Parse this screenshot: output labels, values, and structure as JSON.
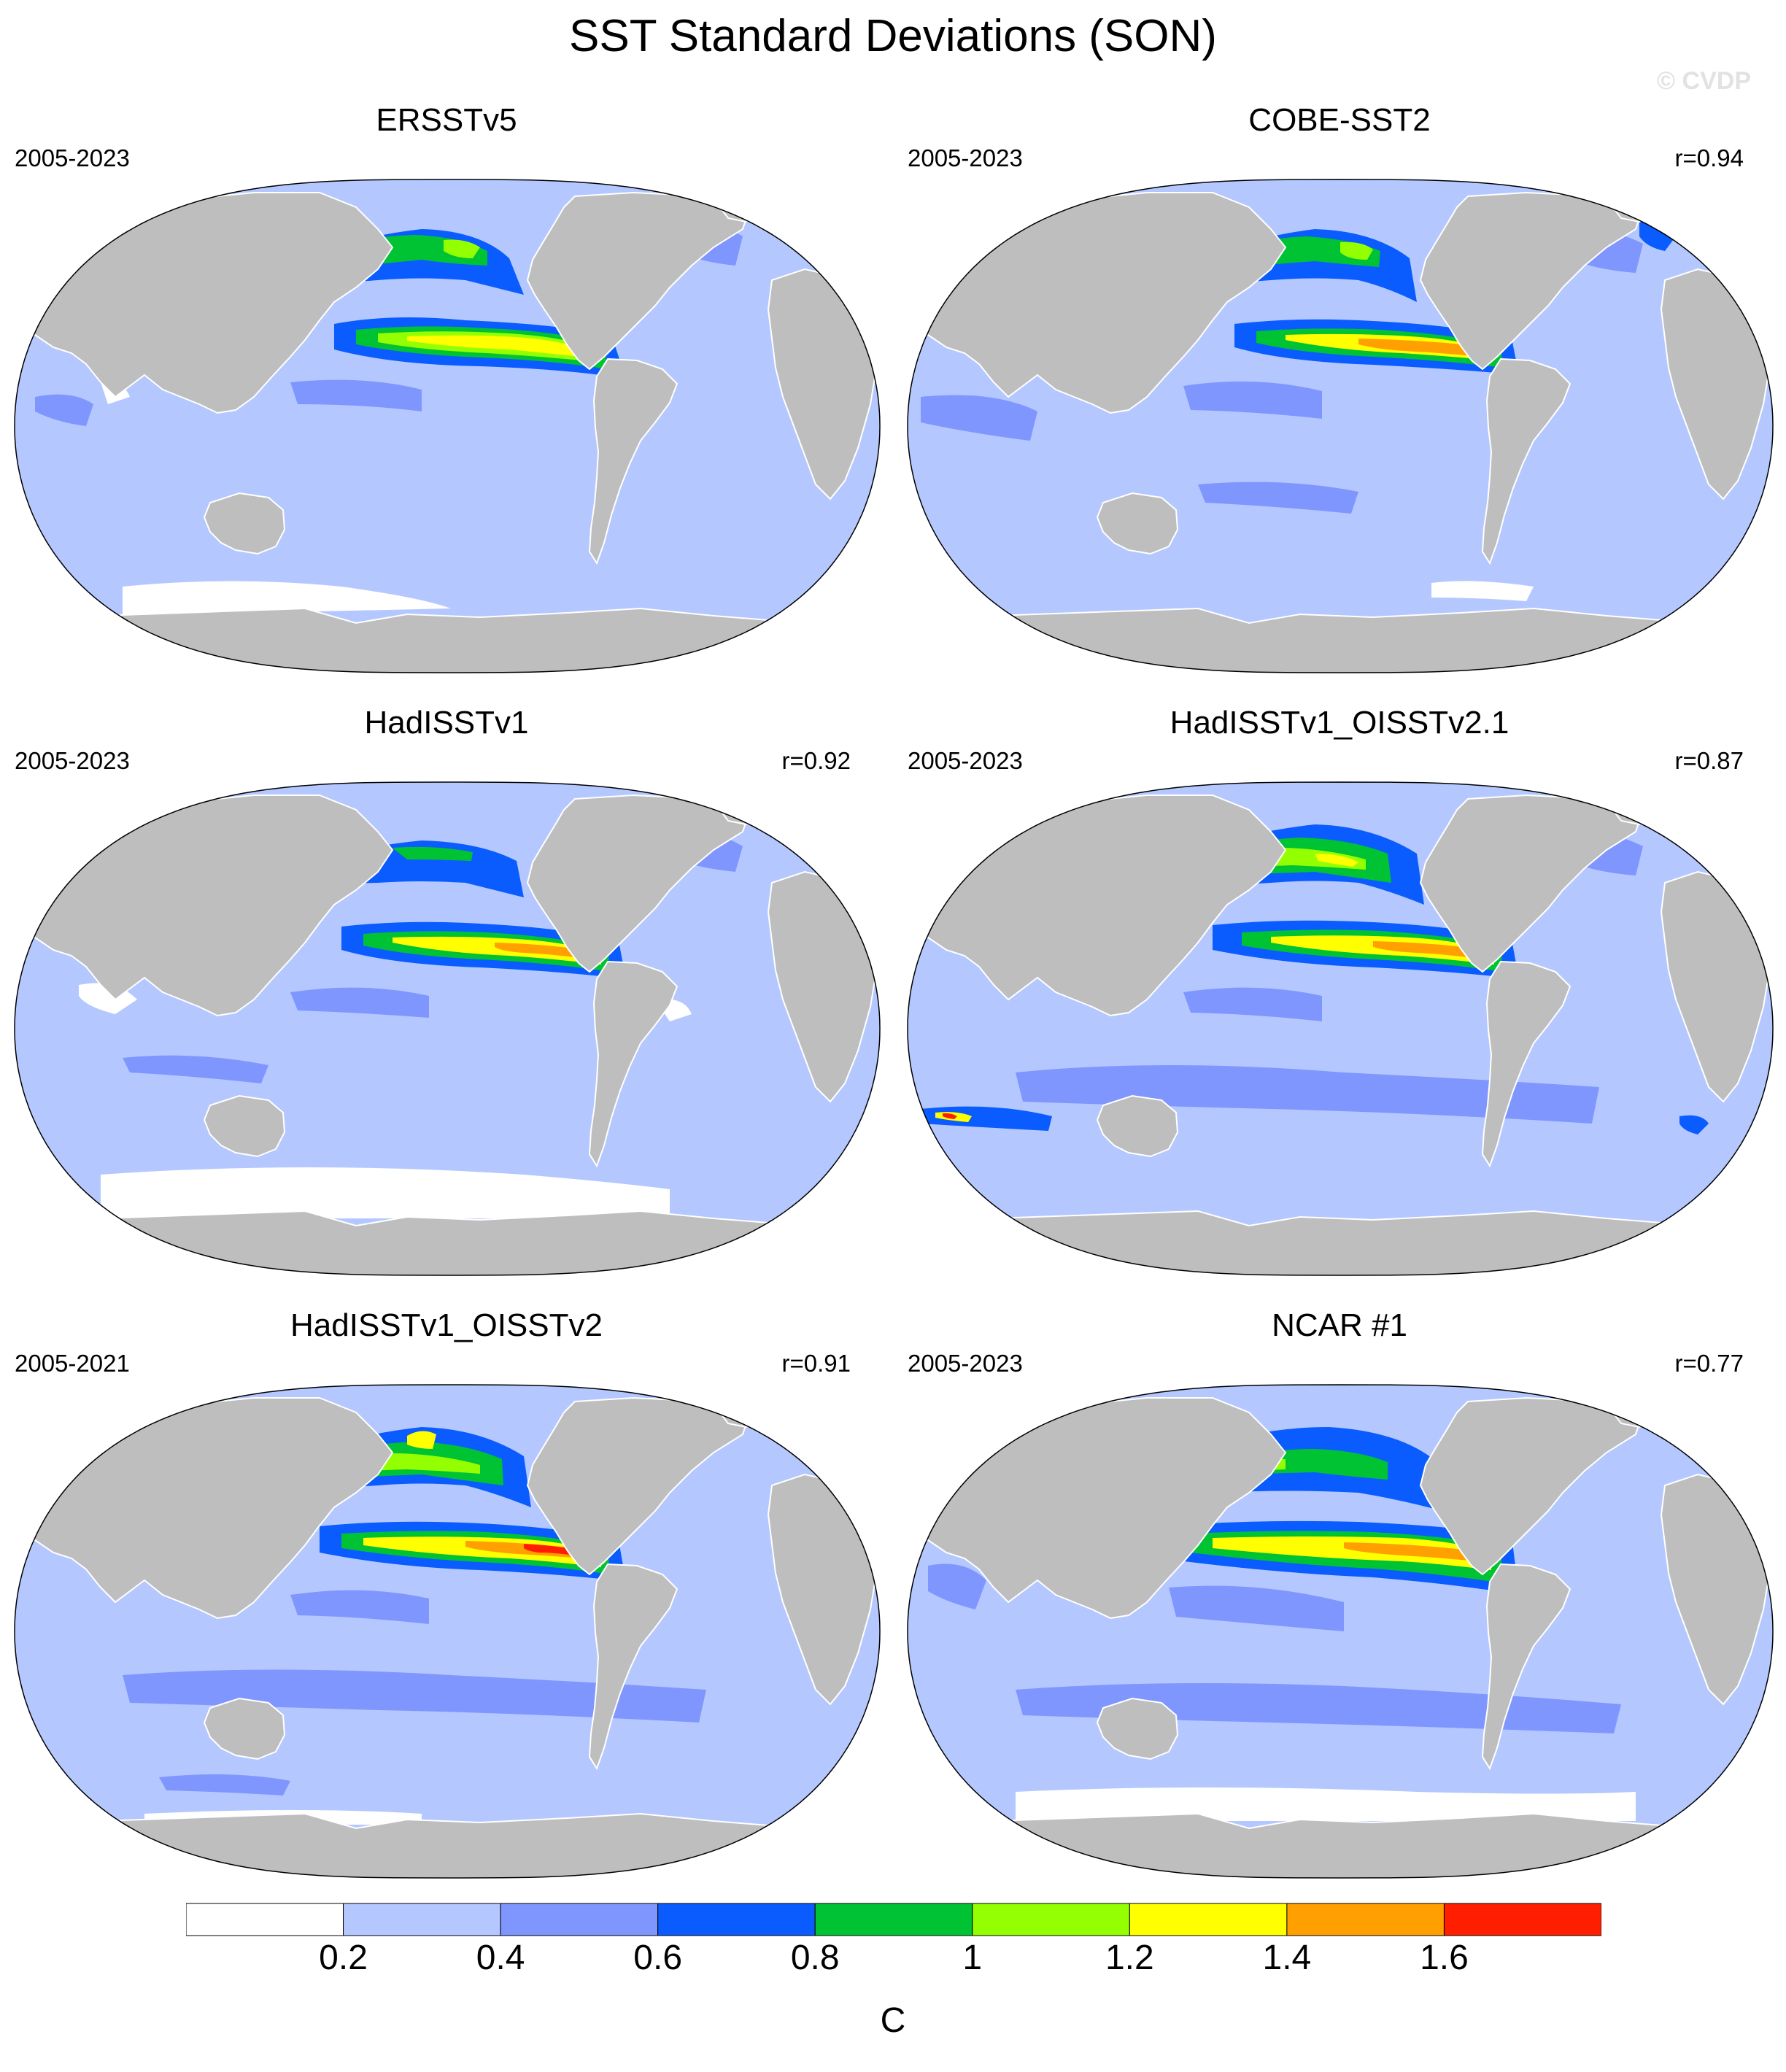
{
  "title": "SST Standard Deviations (SON)",
  "watermark": "© CVDP",
  "panels": [
    {
      "name": "ERSSTv5",
      "period": "2005-2023",
      "r": ""
    },
    {
      "name": "COBE-SST2",
      "period": "2005-2023",
      "r": "r=0.94"
    },
    {
      "name": "HadISSTv1",
      "period": "2005-2023",
      "r": "r=0.92"
    },
    {
      "name": "HadISSTv1_OISSTv2.1",
      "period": "2005-2023",
      "r": "r=0.87"
    },
    {
      "name": "HadISSTv1_OISSTv2",
      "period": "2005-2021",
      "r": "r=0.91"
    },
    {
      "name": "NCAR #1",
      "period": "2005-2023",
      "r": "r=0.77"
    }
  ],
  "colorbar": {
    "units": "C",
    "labels": [
      "0.2",
      "0.4",
      "0.6",
      "0.8",
      "1",
      "1.2",
      "1.4",
      "1.6"
    ],
    "colors": [
      "#ffffff",
      "#b4c8ff",
      "#7f96ff",
      "#0a5cff",
      "#00c333",
      "#93ff00",
      "#ffff00",
      "#ffa000",
      "#ff1e00"
    ]
  },
  "colors": {
    "land": "#bebebe",
    "coast": "#ffffff"
  }
}
